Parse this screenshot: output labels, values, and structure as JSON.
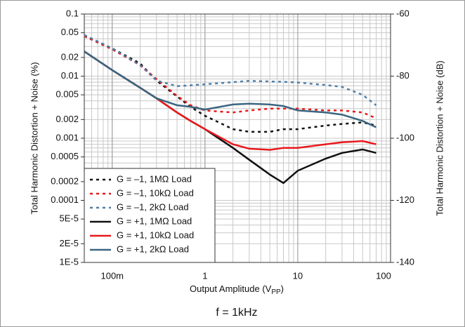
{
  "chart_data": {
    "type": "line",
    "xlabel": [
      "Output Amplitude (V",
      "PP",
      ")"
    ],
    "ylabel": "Total Harmonic Distortion + Noise (%)",
    "y2label": "Total Harmonic Distortion + Noise (dB)",
    "footer": "f = 1kHz",
    "xscale": "log",
    "yscale": "log",
    "grid": true,
    "legend": "lower left",
    "xlim": [
      0.05,
      100
    ],
    "ylim": [
      1e-05,
      0.1
    ],
    "y2lim": [
      -140,
      -60
    ],
    "xticks": [
      {
        "value": 0.1,
        "label": "100m"
      },
      1,
      10,
      100
    ],
    "yticks": [
      0.1,
      0.05,
      0.02,
      0.01,
      0.005,
      0.002,
      0.001,
      0.0005,
      0.0002,
      0.0001,
      {
        "value": 5e-05,
        "label": "5E-5"
      },
      {
        "value": 2e-05,
        "label": "2E-5"
      },
      {
        "value": 1e-05,
        "label": "1E-5"
      }
    ],
    "y2ticks": [
      -60,
      -80,
      -100,
      -120,
      -140
    ],
    "x": [
      0.05,
      0.1,
      0.2,
      0.3,
      0.5,
      0.7,
      1,
      2,
      3,
      5,
      7,
      10,
      20,
      30,
      50,
      70
    ],
    "series": [
      {
        "name": "G = –1, 1MΩ Load",
        "color": "#111111",
        "style": "dashed",
        "values": [
          0.045,
          0.028,
          0.016,
          0.0085,
          0.0047,
          0.0032,
          0.0023,
          0.0014,
          0.00127,
          0.00127,
          0.0014,
          0.0014,
          0.0016,
          0.0017,
          0.0018,
          0.0016
        ]
      },
      {
        "name": "G = –1, 10kΩ Load",
        "color": "#e8191c",
        "style": "dashed",
        "values": [
          0.044,
          0.027,
          0.015,
          0.009,
          0.0048,
          0.0034,
          0.0028,
          0.0026,
          0.0028,
          0.003,
          0.003,
          0.003,
          0.0028,
          0.0028,
          0.0026,
          0.0021
        ]
      },
      {
        "name": "G = –1, 2kΩ Load",
        "color": "#4f7fa6",
        "style": "dashed",
        "values": [
          0.046,
          0.028,
          0.015,
          0.0085,
          0.0069,
          0.0071,
          0.0074,
          0.008,
          0.0084,
          0.0082,
          0.0081,
          0.0079,
          0.0072,
          0.0067,
          0.005,
          0.0034
        ]
      },
      {
        "name": "G = +1, 1MΩ Load",
        "color": "#111111",
        "style": "solid",
        "values": [
          0.025,
          0.0125,
          0.0065,
          0.0044,
          0.0026,
          0.0019,
          0.0014,
          0.0007,
          0.00045,
          0.00026,
          0.00019,
          0.0003,
          0.00047,
          0.00058,
          0.00066,
          0.00058
        ]
      },
      {
        "name": "G = +1, 10kΩ Load",
        "color": "#e8191c",
        "style": "solid",
        "values": [
          0.025,
          0.0125,
          0.0065,
          0.0044,
          0.0026,
          0.0019,
          0.0014,
          0.0008,
          0.00068,
          0.00065,
          0.0007,
          0.0007,
          0.0008,
          0.00086,
          0.0009,
          0.0008
        ]
      },
      {
        "name": "G = +1, 2kΩ Load",
        "color": "#3a6681",
        "style": "solid",
        "values": [
          0.025,
          0.0125,
          0.0065,
          0.0044,
          0.0034,
          0.0032,
          0.0029,
          0.0035,
          0.0036,
          0.0035,
          0.0033,
          0.0028,
          0.0026,
          0.0024,
          0.0019,
          0.0015
        ]
      }
    ]
  }
}
